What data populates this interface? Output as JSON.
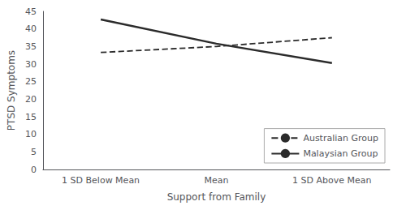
{
  "chart_data": {
    "type": "line",
    "categories": [
      "1 SD Below Mean",
      "Mean",
      "1 SD Above Mean"
    ],
    "series": [
      {
        "name": "Australian Group",
        "color": "#2b2b2b",
        "line_style": "dashed",
        "values": [
          33.3,
          35.0,
          37.5
        ]
      },
      {
        "name": "Malaysian Group",
        "color": "#2b2b2b",
        "line_style": "solid",
        "values": [
          42.7,
          35.8,
          30.3
        ]
      }
    ],
    "xlabel": "Support from Family",
    "ylabel": "PTSD Symptoms",
    "ylim": [
      0,
      45
    ],
    "yticks": [
      0,
      5,
      10,
      15,
      20,
      25,
      30,
      35,
      40,
      45
    ],
    "grid": false,
    "legend": "lower right"
  }
}
